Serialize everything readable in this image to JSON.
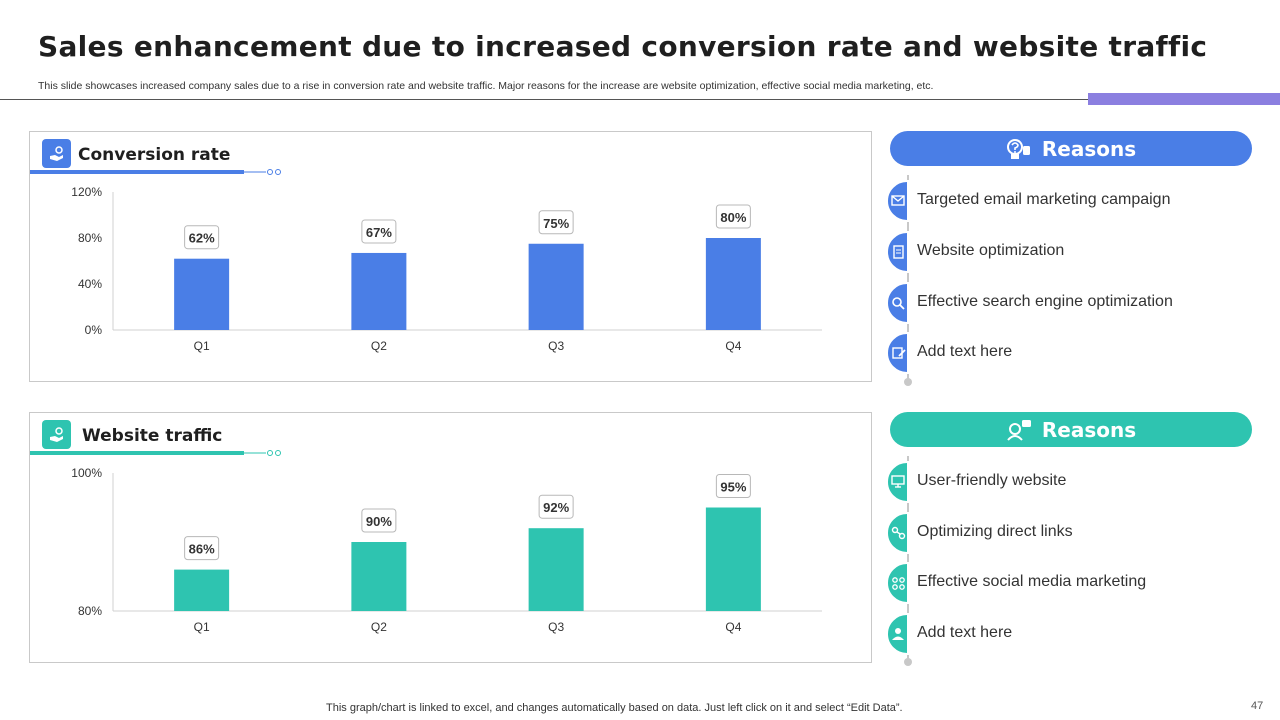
{
  "header": {
    "title": "Sales enhancement due to increased conversion rate and website traffic",
    "subtitle": "This slide showcases increased company sales due to a rise in conversion rate and website traffic. Major reasons for the increase are website optimization, effective social media marketing, etc."
  },
  "colors": {
    "blue": "#4a7ee6",
    "teal": "#2ec4b0",
    "purple": "#8b7fe0",
    "grid": "#d0d0d0"
  },
  "conversion": {
    "title": "Conversion rate",
    "icon": "hand-coin-icon",
    "chart_data": {
      "type": "bar",
      "title": "Conversion rate",
      "categories": [
        "Q1",
        "Q2",
        "Q3",
        "Q4"
      ],
      "values": [
        62,
        67,
        75,
        80
      ],
      "value_labels": [
        "62%",
        "67%",
        "75%",
        "80%"
      ],
      "ylim": [
        0,
        120
      ],
      "yticks": [
        0,
        40,
        80,
        120
      ],
      "ytick_labels": [
        "0%",
        "40%",
        "80%",
        "120%"
      ],
      "xlabel": "",
      "ylabel": "",
      "color": "#4a7ee6"
    }
  },
  "traffic": {
    "title": "Website traffic",
    "icon": "hand-coin-icon",
    "chart_data": {
      "type": "bar",
      "title": "Website traffic",
      "categories": [
        "Q1",
        "Q2",
        "Q3",
        "Q4"
      ],
      "values": [
        86,
        90,
        92,
        95
      ],
      "value_labels": [
        "86%",
        "90%",
        "92%",
        "95%"
      ],
      "ylim": [
        80,
        100
      ],
      "yticks": [
        80,
        100
      ],
      "ytick_labels": [
        "80%",
        "100%"
      ],
      "xlabel": "",
      "ylabel": "",
      "color": "#2ec4b0"
    }
  },
  "reasons_top": {
    "title": "Reasons",
    "items": [
      {
        "label": "Targeted email marketing campaign",
        "icon": "email-icon"
      },
      {
        "label": "Website optimization",
        "icon": "document-icon"
      },
      {
        "label": "Effective search engine optimization",
        "icon": "search-icon"
      },
      {
        "label": "Add text here",
        "icon": "edit-document-icon"
      }
    ]
  },
  "reasons_bottom": {
    "title": "Reasons",
    "items": [
      {
        "label": "User-friendly  website",
        "icon": "monitor-icon"
      },
      {
        "label": "Optimizing direct links",
        "icon": "link-icon"
      },
      {
        "label": "Effective social media marketing",
        "icon": "social-network-icon"
      },
      {
        "label": "Add text here",
        "icon": "user-network-icon"
      }
    ]
  },
  "footer": {
    "note": "This graph/chart is linked to excel,  and changes automatically based on data. Just left click on it and select “Edit Data”.",
    "page_number": "47"
  }
}
